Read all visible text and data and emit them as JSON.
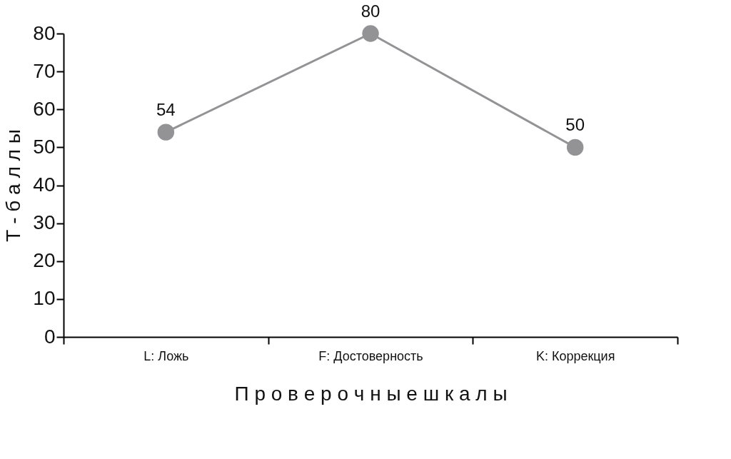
{
  "chart_data": {
    "type": "line",
    "xlabel": "П р о в е р о ч н ы е   ш к а л ы",
    "ylabel": "Т - б а л л ы",
    "categories": [
      "L: Ложь",
      "F: Достоверность",
      "K: Коррекция"
    ],
    "series": [
      {
        "color": "#939395",
        "values": [
          54,
          80,
          50
        ]
      }
    ],
    "ylim": [
      0,
      80
    ],
    "yticks": [
      0,
      10,
      20,
      30,
      40,
      50,
      60,
      70,
      80
    ],
    "data_labels": true,
    "grid": false,
    "legend": false,
    "marker": "circle",
    "line_style": "solid"
  }
}
